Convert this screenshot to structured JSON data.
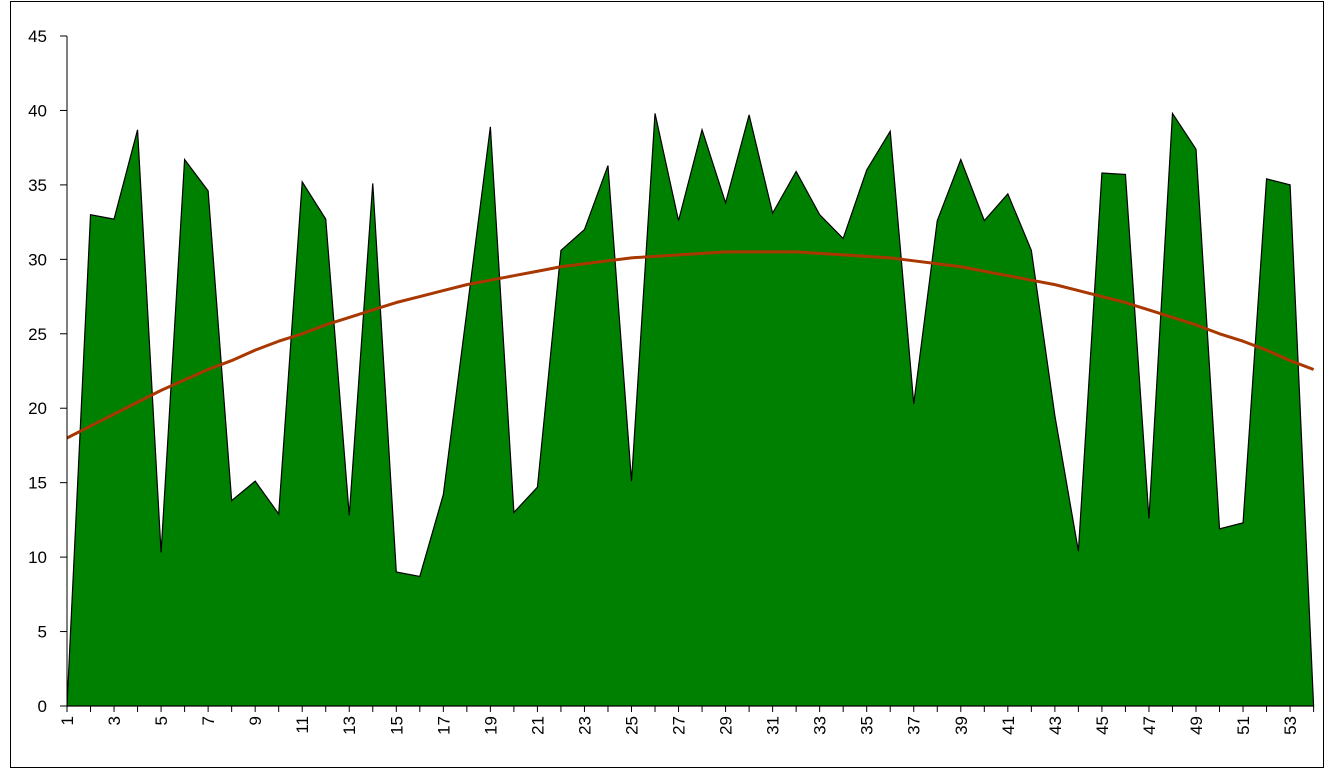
{
  "chart_data": {
    "type": "area",
    "categories": [
      1,
      null,
      3,
      null,
      5,
      null,
      7,
      null,
      9,
      null,
      11,
      null,
      13,
      null,
      15,
      null,
      17,
      null,
      19,
      null,
      21,
      null,
      23,
      null,
      25,
      null,
      27,
      null,
      29,
      null,
      31,
      null,
      33,
      null,
      35,
      null,
      37,
      null,
      39,
      null,
      41,
      null,
      43,
      null,
      45,
      null,
      47,
      null,
      49,
      null,
      51,
      null,
      53,
      null
    ],
    "series": [
      {
        "type": "area",
        "color": "#008000",
        "values": [
          0,
          33,
          32.7,
          38.7,
          10.3,
          36.7,
          34.6,
          13.8,
          15.1,
          12.9,
          35.2,
          32.7,
          12.8,
          35.1,
          9.0,
          8.7,
          14.2,
          26.5,
          38.9,
          13.0,
          14.7,
          30.6,
          32.0,
          36.3,
          15.1,
          39.8,
          32.6,
          38.7,
          33.8,
          39.7,
          33.1,
          35.9,
          33.0,
          31.4,
          36.0,
          38.6,
          20.3,
          32.6,
          36.7,
          32.6,
          34.4,
          30.6,
          19.5,
          10.4,
          35.8,
          35.7,
          12.6,
          39.8,
          37.4,
          11.9,
          12.3,
          35.4,
          35.0,
          0
        ]
      },
      {
        "type": "line",
        "color": "#a83800",
        "values": [
          18.0,
          18.8,
          19.6,
          20.4,
          21.2,
          21.9,
          22.6,
          23.2,
          23.9,
          24.5,
          25.0,
          25.6,
          26.1,
          26.6,
          27.1,
          27.5,
          27.9,
          28.3,
          28.6,
          28.9,
          29.2,
          29.5,
          29.7,
          29.9,
          30.1,
          30.2,
          30.3,
          30.4,
          30.5,
          30.5,
          30.5,
          30.5,
          30.4,
          30.3,
          30.2,
          30.1,
          29.9,
          29.7,
          29.5,
          29.2,
          28.9,
          28.6,
          28.3,
          27.9,
          27.5,
          27.1,
          26.6,
          26.1,
          25.6,
          25.0,
          24.5,
          23.9,
          23.2,
          22.6
        ]
      }
    ],
    "ylim": [
      0,
      45
    ],
    "yticks": [
      0,
      5,
      10,
      15,
      20,
      25,
      30,
      35,
      40,
      45
    ],
    "grid": false
  }
}
